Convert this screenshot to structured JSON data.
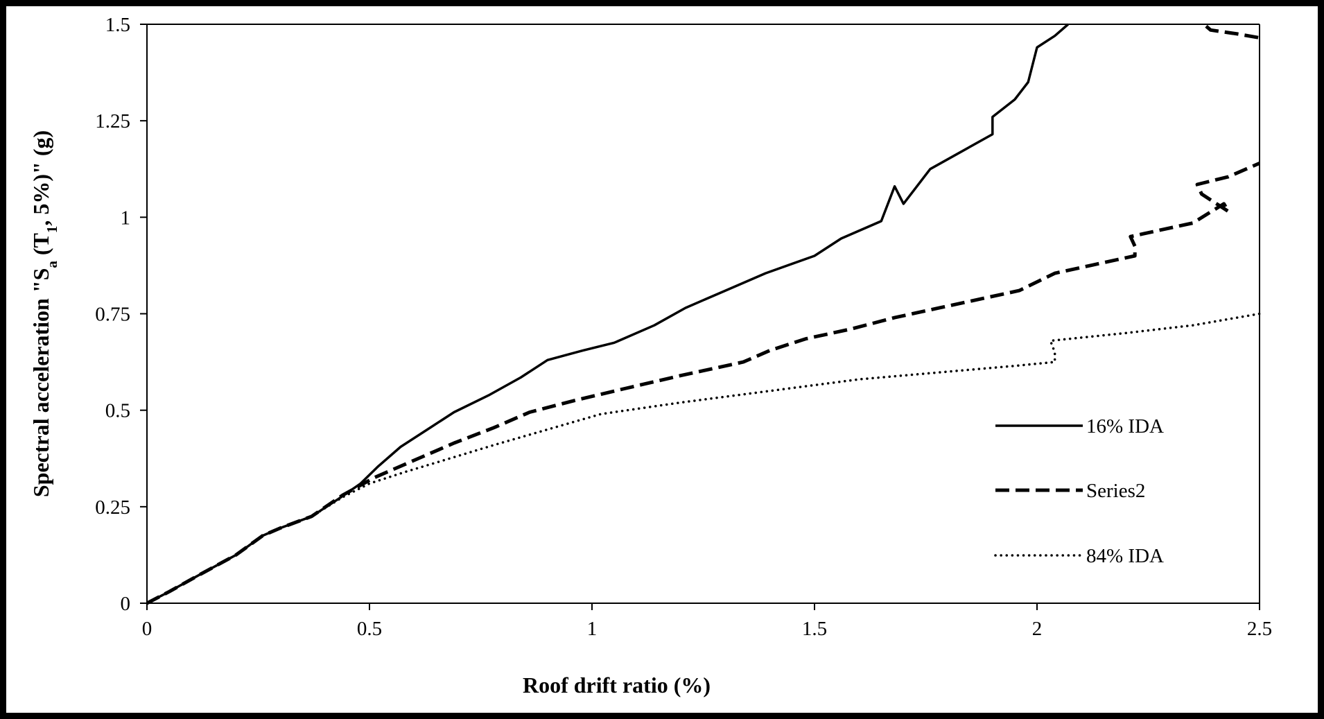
{
  "chart_data": {
    "type": "line",
    "title": "",
    "xlabel": "Roof drift ratio (%)",
    "ylabel_parts": {
      "pre": "Spectral acceleration  \"S",
      "sub1": "a",
      "mid": " (T",
      "sub2": "1",
      "post": ", 5%)\"  (g)"
    },
    "xlim": [
      0,
      2.5
    ],
    "ylim": [
      0,
      1.5
    ],
    "xticks": [
      "0",
      "0.5",
      "1",
      "1.5",
      "2",
      "2.5"
    ],
    "yticks": [
      "0",
      "0.25",
      "0.5",
      "0.75",
      "1",
      "1.25",
      "1.5"
    ],
    "grid": false,
    "legend_position": "right",
    "series": [
      {
        "name": "16% IDA",
        "style": "solid",
        "color": "#000000",
        "points": [
          [
            0,
            0
          ],
          [
            0.05,
            0.03
          ],
          [
            0.12,
            0.075
          ],
          [
            0.2,
            0.125
          ],
          [
            0.26,
            0.175
          ],
          [
            0.3,
            0.195
          ],
          [
            0.37,
            0.225
          ],
          [
            0.43,
            0.27
          ],
          [
            0.48,
            0.31
          ],
          [
            0.52,
            0.355
          ],
          [
            0.57,
            0.405
          ],
          [
            0.63,
            0.45
          ],
          [
            0.69,
            0.495
          ],
          [
            0.77,
            0.54
          ],
          [
            0.84,
            0.585
          ],
          [
            0.9,
            0.63
          ],
          [
            0.98,
            0.655
          ],
          [
            1.05,
            0.675
          ],
          [
            1.14,
            0.72
          ],
          [
            1.21,
            0.765
          ],
          [
            1.3,
            0.81
          ],
          [
            1.39,
            0.855
          ],
          [
            1.5,
            0.9
          ],
          [
            1.56,
            0.945
          ],
          [
            1.65,
            0.99
          ],
          [
            1.68,
            1.08
          ],
          [
            1.7,
            1.035
          ],
          [
            1.76,
            1.125
          ],
          [
            1.83,
            1.17
          ],
          [
            1.9,
            1.215
          ],
          [
            1.9,
            1.26
          ],
          [
            1.95,
            1.305
          ],
          [
            1.98,
            1.35
          ],
          [
            1.99,
            1.395
          ],
          [
            2.0,
            1.44
          ],
          [
            2.04,
            1.47
          ],
          [
            2.07,
            1.5
          ]
        ]
      },
      {
        "name": "Series2",
        "style": "dashed",
        "color": "#000000",
        "points": [
          [
            0,
            0
          ],
          [
            0.05,
            0.03
          ],
          [
            0.12,
            0.075
          ],
          [
            0.2,
            0.125
          ],
          [
            0.26,
            0.175
          ],
          [
            0.3,
            0.195
          ],
          [
            0.37,
            0.225
          ],
          [
            0.44,
            0.28
          ],
          [
            0.51,
            0.325
          ],
          [
            0.6,
            0.37
          ],
          [
            0.69,
            0.415
          ],
          [
            0.78,
            0.455
          ],
          [
            0.86,
            0.495
          ],
          [
            0.96,
            0.525
          ],
          [
            1.07,
            0.555
          ],
          [
            1.2,
            0.59
          ],
          [
            1.34,
            0.625
          ],
          [
            1.4,
            0.655
          ],
          [
            1.48,
            0.685
          ],
          [
            1.58,
            0.71
          ],
          [
            1.68,
            0.74
          ],
          [
            1.78,
            0.765
          ],
          [
            1.88,
            0.79
          ],
          [
            1.96,
            0.81
          ],
          [
            2.04,
            0.855
          ],
          [
            2.12,
            0.875
          ],
          [
            2.22,
            0.9
          ],
          [
            2.22,
            0.925
          ],
          [
            2.21,
            0.95
          ],
          [
            2.27,
            0.965
          ],
          [
            2.35,
            0.985
          ],
          [
            2.42,
            1.035
          ],
          [
            2.43,
            1.015
          ],
          [
            2.37,
            1.06
          ],
          [
            2.36,
            1.085
          ],
          [
            2.43,
            1.105
          ],
          [
            2.5,
            1.14
          ]
        ],
        "segment2": [
          [
            2.38,
            1.495
          ],
          [
            2.39,
            1.485
          ],
          [
            2.45,
            1.475
          ],
          [
            2.5,
            1.465
          ]
        ]
      },
      {
        "name": "84% IDA",
        "style": "dotted",
        "color": "#000000",
        "points": [
          [
            0,
            0
          ],
          [
            0.05,
            0.03
          ],
          [
            0.12,
            0.075
          ],
          [
            0.2,
            0.125
          ],
          [
            0.26,
            0.175
          ],
          [
            0.3,
            0.195
          ],
          [
            0.37,
            0.225
          ],
          [
            0.44,
            0.275
          ],
          [
            0.5,
            0.31
          ],
          [
            0.58,
            0.34
          ],
          [
            0.68,
            0.375
          ],
          [
            0.78,
            0.41
          ],
          [
            0.9,
            0.45
          ],
          [
            1.02,
            0.49
          ],
          [
            1.2,
            0.52
          ],
          [
            1.4,
            0.55
          ],
          [
            1.6,
            0.58
          ],
          [
            1.8,
            0.6
          ],
          [
            1.95,
            0.615
          ],
          [
            2.04,
            0.625
          ],
          [
            2.04,
            0.65
          ],
          [
            2.03,
            0.68
          ],
          [
            2.2,
            0.7
          ],
          [
            2.35,
            0.72
          ],
          [
            2.5,
            0.75
          ]
        ]
      }
    ]
  }
}
